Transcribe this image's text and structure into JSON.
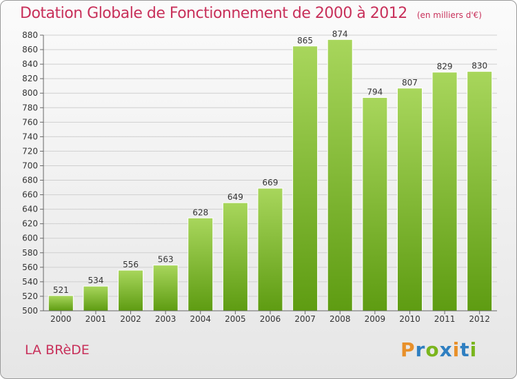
{
  "title": "Dotation Globale de Fonctionnement de 2000 à 2012",
  "unit_label": "(en milliers d'€)",
  "commune": "LA BRèDE",
  "logo": {
    "text": "Proxiti",
    "letters": [
      "P",
      "r",
      "o",
      "x",
      "i",
      "t",
      "i"
    ],
    "colors": [
      "#e8902a",
      "#2f7fc1",
      "#7ab51d",
      "#2f7fc1",
      "#e8902a",
      "#2f7fc1",
      "#7ab51d"
    ]
  },
  "colors": {
    "title": "#c8305a",
    "bar_light": "#a8d65c",
    "bar_dark": "#5e9c12"
  },
  "chart_data": {
    "type": "bar",
    "categories": [
      "2000",
      "2001",
      "2002",
      "2003",
      "2004",
      "2005",
      "2006",
      "2007",
      "2008",
      "2009",
      "2010",
      "2011",
      "2012"
    ],
    "values": [
      521,
      534,
      556,
      563,
      628,
      649,
      669,
      865,
      874,
      794,
      807,
      829,
      830
    ],
    "ylim": [
      500,
      880
    ],
    "yticks": [
      500,
      520,
      540,
      560,
      580,
      600,
      620,
      640,
      660,
      680,
      700,
      720,
      740,
      760,
      780,
      800,
      820,
      840,
      860,
      880
    ],
    "grid": "horizontal",
    "legend": "none"
  }
}
